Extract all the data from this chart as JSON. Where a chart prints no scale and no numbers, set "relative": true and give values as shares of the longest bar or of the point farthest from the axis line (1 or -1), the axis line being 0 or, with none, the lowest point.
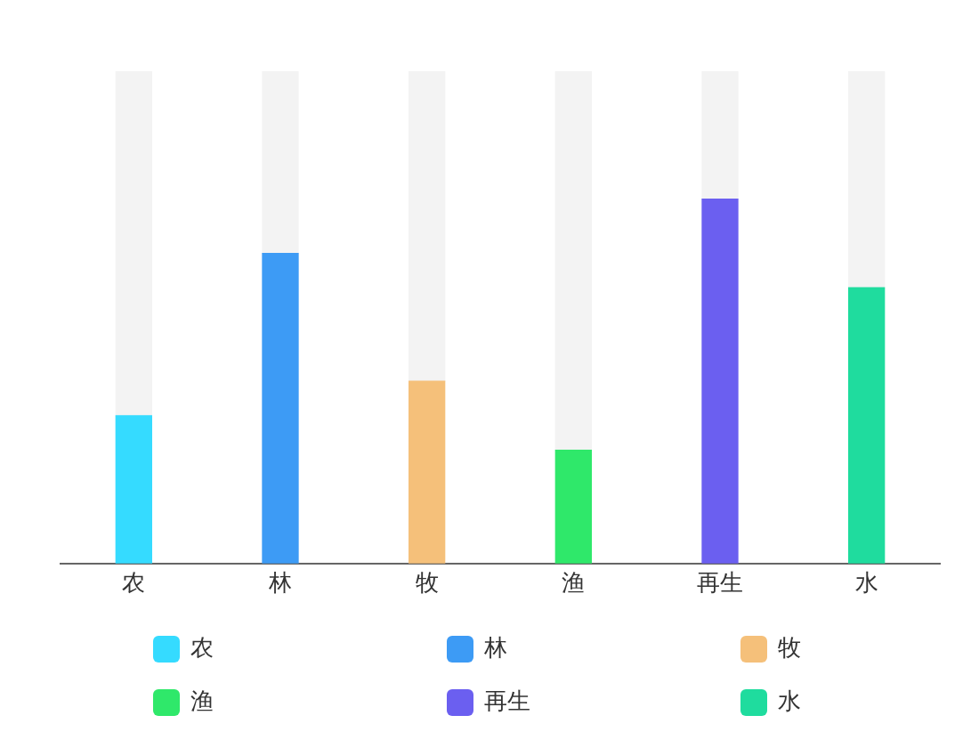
{
  "chart_data": {
    "type": "bar",
    "relative": true,
    "stacked": true,
    "categories": [
      "农",
      "林",
      "牧",
      "渔",
      "再生",
      "水"
    ],
    "legend": "bottom",
    "grid": false,
    "series": [
      {
        "name": "农",
        "color": "#35dbff",
        "values": [
          0.3,
          null,
          null,
          null,
          null,
          null
        ]
      },
      {
        "name": "林",
        "color": "#3d9bf5",
        "values": [
          null,
          0.63,
          null,
          null,
          null,
          null
        ]
      },
      {
        "name": "牧",
        "color": "#f5c07a",
        "values": [
          null,
          null,
          0.37,
          null,
          null,
          null
        ]
      },
      {
        "name": "渔",
        "color": "#2fe86a",
        "values": [
          null,
          null,
          null,
          0.23,
          null,
          null
        ]
      },
      {
        "name": "再生",
        "color": "#6b5ff0",
        "values": [
          null,
          null,
          null,
          null,
          0.74,
          null
        ]
      },
      {
        "name": "水",
        "color": "#1fdc9e",
        "values": [
          null,
          null,
          null,
          null,
          null,
          0.56
        ]
      },
      {
        "color": "#f3f3f3",
        "values": [
          0.7,
          0.37,
          0.63,
          0.77,
          0.26,
          0.44
        ]
      }
    ]
  }
}
